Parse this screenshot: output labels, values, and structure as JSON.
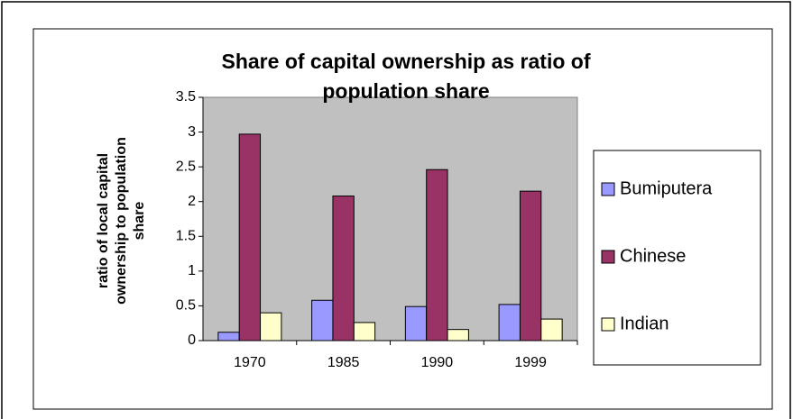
{
  "chart_data": {
    "type": "bar",
    "title": "Share of capital ownership as ratio of population share",
    "y_label": "ratio of local capital ownership to population share",
    "categories": [
      "1970",
      "1985",
      "1990",
      "1999"
    ],
    "series": [
      {
        "name": "Bumiputera",
        "color": "#9999ff",
        "values": [
          0.12,
          0.58,
          0.49,
          0.52
        ]
      },
      {
        "name": "Chinese",
        "color": "#993366",
        "values": [
          2.97,
          2.08,
          2.46,
          2.15
        ]
      },
      {
        "name": "Indian",
        "color": "#ffffcc",
        "values": [
          0.4,
          0.26,
          0.16,
          0.31
        ]
      }
    ],
    "ylim": [
      0,
      3.5
    ],
    "yticks": [
      0,
      0.5,
      1,
      1.5,
      2,
      2.5,
      3,
      3.5
    ],
    "grid": false,
    "legend": "right"
  }
}
